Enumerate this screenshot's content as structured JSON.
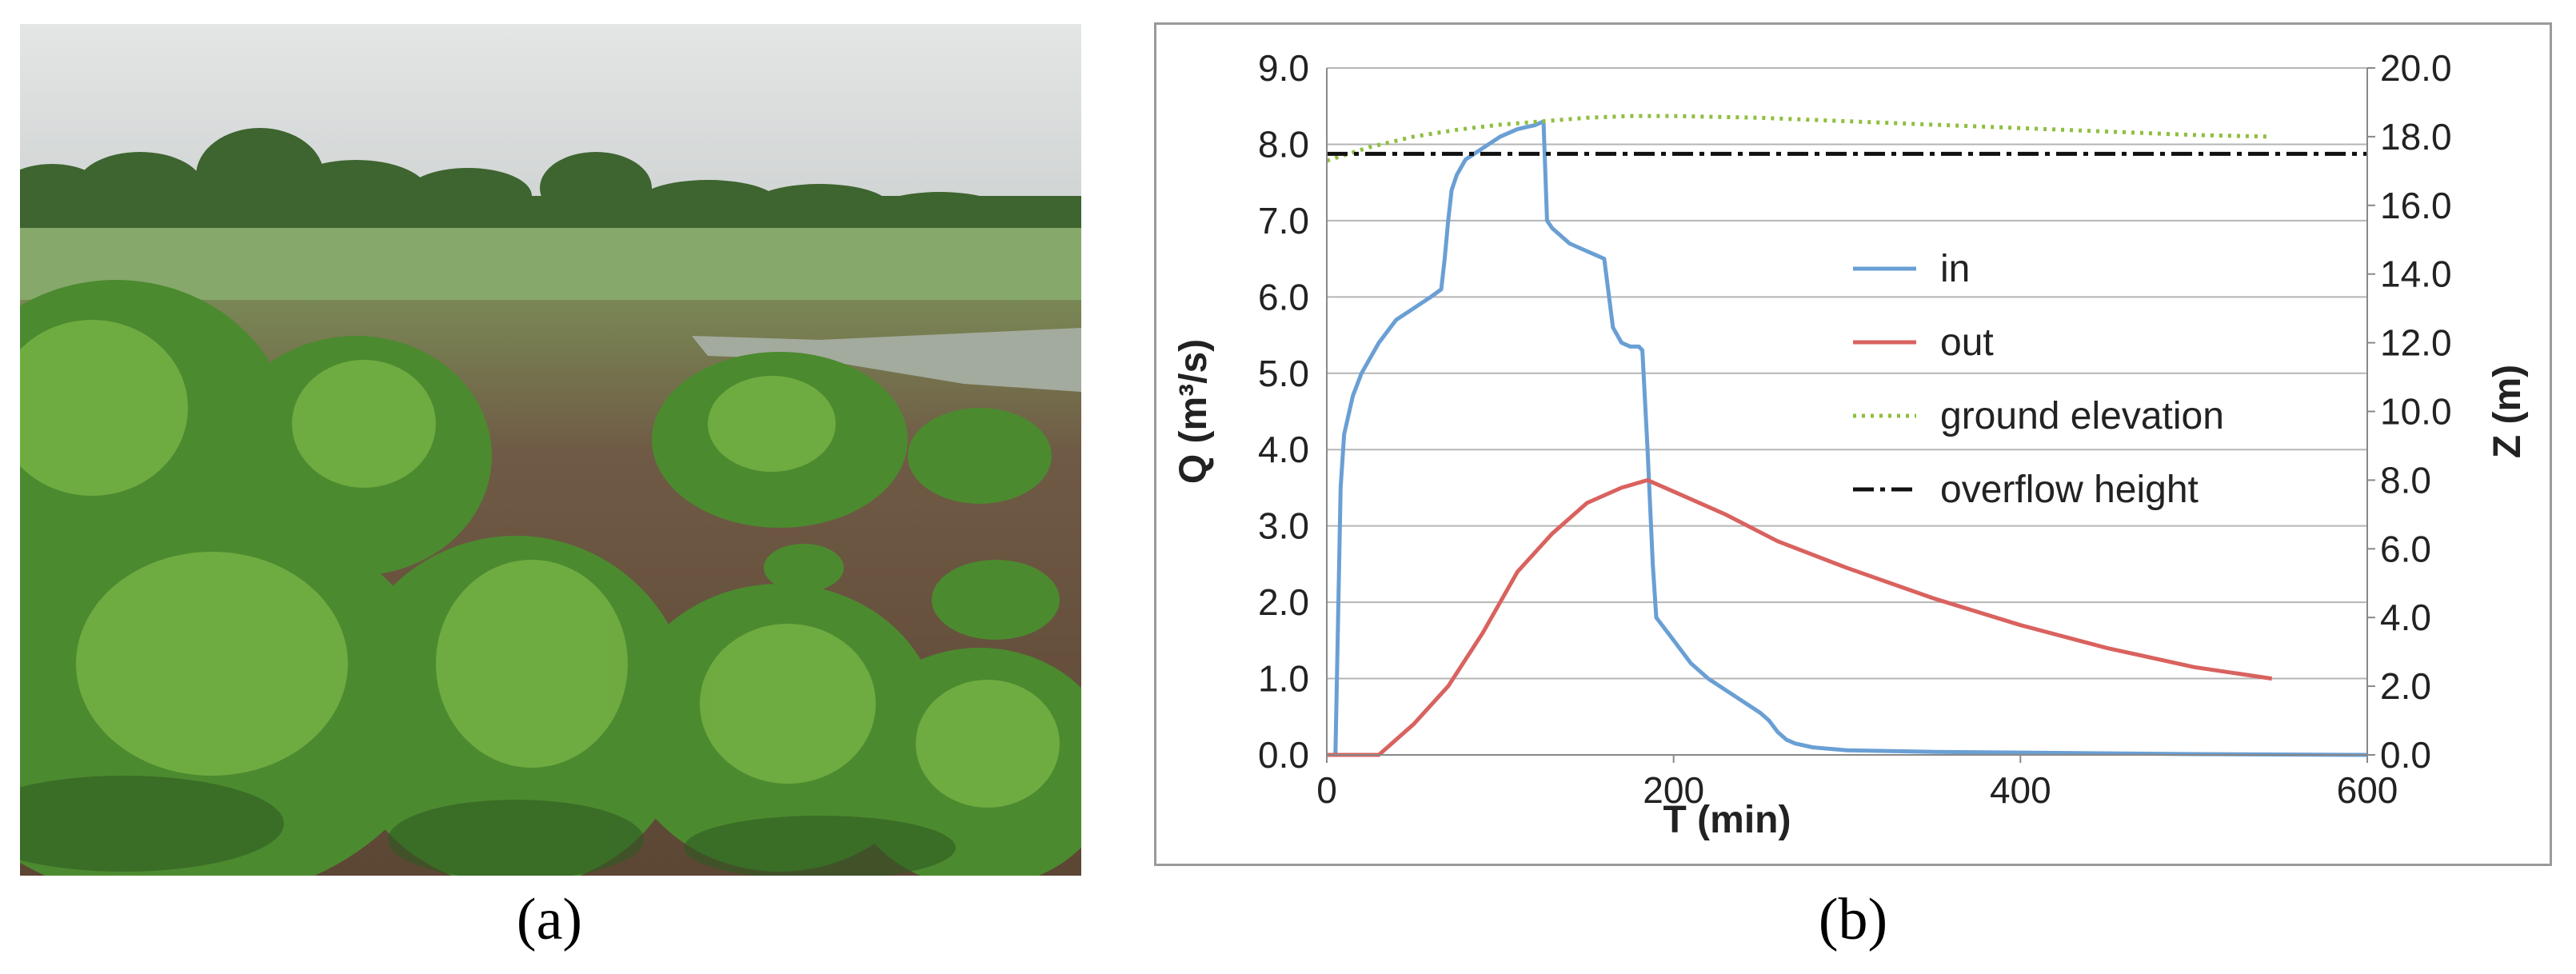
{
  "panels": {
    "a_label": "(a)",
    "b_label": "(b)"
  },
  "photo": {
    "subject": "field-of-green-shrubs-with-pond-and-tree-line",
    "colors": {
      "sky": "#d9dcdc",
      "trees": "#3f6a2c",
      "soil": "#6b4a36",
      "foliage": "#4f8a2e",
      "water": "#9fa99c"
    }
  },
  "chart_data": {
    "type": "line",
    "title": "",
    "xlabel": "T (min)",
    "ylabel": "Q (m³/s)",
    "y2label": "Z (m)",
    "xlim": [
      0,
      600
    ],
    "ylim": [
      0,
      9
    ],
    "y2lim": [
      0,
      20
    ],
    "x_ticks": [
      "0",
      "200",
      "400",
      "600"
    ],
    "y_ticks": [
      "0.0",
      "1.0",
      "2.0",
      "3.0",
      "4.0",
      "5.0",
      "6.0",
      "7.0",
      "8.0",
      "9.0"
    ],
    "y2_ticks": [
      "0.0",
      "2.0",
      "4.0",
      "6.0",
      "8.0",
      "10.0",
      "12.0",
      "14.0",
      "16.0",
      "18.0",
      "20.0"
    ],
    "grid": "horizontal",
    "legend_position": "right-center",
    "series": [
      {
        "name": "in",
        "axis": "left",
        "color": "#6a9fd4",
        "style": "solid",
        "x": [
          0,
          5,
          8,
          10,
          15,
          20,
          30,
          40,
          50,
          60,
          66,
          68,
          70,
          72,
          75,
          80,
          90,
          100,
          110,
          120,
          125,
          127,
          130,
          140,
          150,
          155,
          160,
          165,
          170,
          175,
          180,
          182,
          185,
          188,
          190,
          200,
          210,
          220,
          230,
          240,
          250,
          255,
          260,
          265,
          270,
          280,
          300,
          350,
          400,
          500,
          600
        ],
        "y": [
          0.0,
          0.0,
          3.5,
          4.2,
          4.7,
          5.0,
          5.4,
          5.7,
          5.85,
          6.0,
          6.1,
          6.5,
          7.0,
          7.4,
          7.6,
          7.8,
          7.95,
          8.1,
          8.2,
          8.25,
          8.3,
          7.0,
          6.9,
          6.7,
          6.6,
          6.55,
          6.5,
          5.6,
          5.4,
          5.35,
          5.35,
          5.3,
          4.0,
          2.5,
          1.8,
          1.5,
          1.2,
          1.0,
          0.85,
          0.7,
          0.55,
          0.45,
          0.3,
          0.2,
          0.15,
          0.1,
          0.06,
          0.04,
          0.03,
          0.01,
          0.0
        ]
      },
      {
        "name": "out",
        "axis": "left",
        "color": "#d9625f",
        "style": "solid",
        "x": [
          0,
          30,
          50,
          70,
          90,
          110,
          130,
          150,
          170,
          185,
          200,
          230,
          260,
          300,
          350,
          400,
          450,
          500,
          545
        ],
        "y": [
          0.0,
          0.0,
          0.4,
          0.9,
          1.6,
          2.4,
          2.9,
          3.3,
          3.5,
          3.6,
          3.45,
          3.15,
          2.8,
          2.45,
          2.05,
          1.7,
          1.4,
          1.15,
          1.0
        ]
      },
      {
        "name": "ground elevation",
        "axis": "right",
        "color": "#8fbf3f",
        "style": "dotted",
        "x": [
          0,
          25,
          50,
          75,
          100,
          125,
          150,
          175,
          200,
          250,
          300,
          350,
          400,
          450,
          500,
          545
        ],
        "y": [
          17.3,
          17.7,
          18.0,
          18.2,
          18.35,
          18.45,
          18.55,
          18.6,
          18.6,
          18.55,
          18.45,
          18.35,
          18.25,
          18.15,
          18.05,
          18.0
        ]
      },
      {
        "name": "overflow height",
        "axis": "right",
        "color": "#111111",
        "style": "dashdot",
        "x": [
          0,
          600
        ],
        "y": [
          17.5,
          17.5
        ]
      }
    ]
  }
}
